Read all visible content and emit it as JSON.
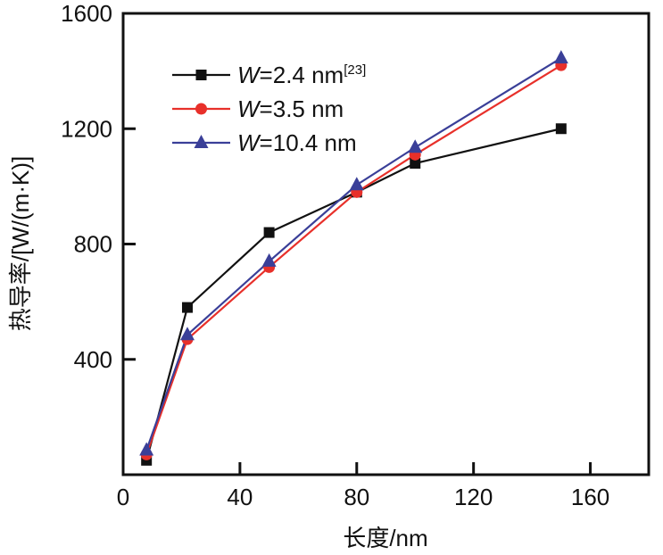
{
  "chart_data": {
    "type": "line",
    "title": "",
    "xlabel": "长度/nm",
    "ylabel": "热导率/[W/(m·K)]",
    "xlim": [
      0,
      180
    ],
    "ylim": [
      0,
      1600
    ],
    "xticks": [
      0,
      40,
      80,
      120,
      160
    ],
    "yticks": [
      400,
      800,
      1200,
      1600
    ],
    "xtick_labels": [
      "0",
      "40",
      "80",
      "120",
      "160"
    ],
    "ytick_labels": [
      "400",
      "800",
      "1200",
      "1600"
    ],
    "grid": false,
    "legend_position": "top-left",
    "series": [
      {
        "name": "W=2.4 nm[23]",
        "legend_prefix": "W",
        "legend_rest": "=2.4 nm",
        "legend_sup": "[23]",
        "color": "#111111",
        "marker": "square",
        "x": [
          8,
          22,
          50,
          80,
          100,
          150
        ],
        "y": [
          50,
          580,
          840,
          980,
          1080,
          1200
        ]
      },
      {
        "name": "W=3.5 nm",
        "legend_prefix": "W",
        "legend_rest": "=3.5 nm",
        "legend_sup": "",
        "color": "#e8302a",
        "marker": "circle",
        "x": [
          8,
          22,
          50,
          80,
          100,
          150
        ],
        "y": [
          70,
          470,
          720,
          980,
          1110,
          1420
        ]
      },
      {
        "name": "W=10.4 nm",
        "legend_prefix": "W",
        "legend_rest": "=10.4 nm",
        "legend_sup": "",
        "color": "#3a3f98",
        "marker": "triangle",
        "x": [
          8,
          22,
          50,
          80,
          100,
          150
        ],
        "y": [
          85,
          485,
          740,
          1005,
          1135,
          1445
        ]
      }
    ]
  }
}
